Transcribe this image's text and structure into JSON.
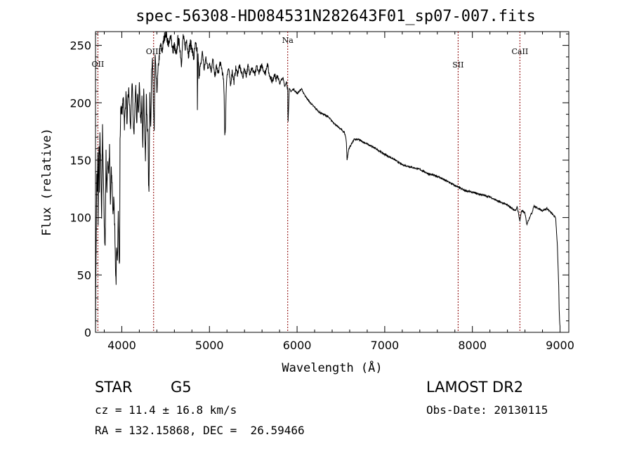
{
  "chart_data": {
    "type": "line",
    "title": "spec-56308-HD084531N282643F01_sp07-007.fits",
    "xlabel": "Wavelength (Å)",
    "ylabel": "Flux (relative)",
    "xlim": [
      3700,
      9100
    ],
    "ylim": [
      0,
      262
    ],
    "xticks": [
      4000,
      5000,
      6000,
      7000,
      8000,
      9000
    ],
    "yticks": [
      0,
      50,
      100,
      150,
      200,
      250
    ],
    "lines": [
      {
        "label": "OII",
        "x": 3727
      },
      {
        "label": "OIII",
        "x": 4363
      },
      {
        "label": "Na",
        "x": 5893
      },
      {
        "label": "SII",
        "x": 7837
      },
      {
        "label": "CaII",
        "x": 8542
      }
    ],
    "series": [
      {
        "x": [
          3700,
          3705,
          3710,
          3715,
          3720,
          3725,
          3730,
          3735,
          3740,
          3745,
          3750,
          3760,
          3770,
          3780,
          3790,
          3800,
          3810,
          3820,
          3830,
          3840,
          3850,
          3860,
          3870,
          3880,
          3890,
          3900,
          3910,
          3920,
          3930,
          3935,
          3940,
          3950,
          3960,
          3970,
          3975,
          3980,
          3990,
          4000,
          4010,
          4020,
          4030,
          4040,
          4050,
          4060,
          4070,
          4080,
          4090,
          4100,
          4110,
          4120,
          4130,
          4140,
          4150,
          4160,
          4170,
          4180,
          4190,
          4200,
          4210,
          4220,
          4230,
          4240,
          4250,
          4260,
          4270,
          4280,
          4290,
          4300,
          4305,
          4310,
          4320,
          4330,
          4340,
          4350,
          4360,
          4370,
          4380,
          4390,
          4400,
          4420,
          4440,
          4460,
          4480,
          4500,
          4520,
          4540,
          4560,
          4580,
          4600,
          4620,
          4640,
          4660,
          4680,
          4700,
          4720,
          4740,
          4760,
          4780,
          4800,
          4820,
          4840,
          4860,
          4861,
          4870,
          4880,
          4900,
          4920,
          4940,
          4960,
          4980,
          5000,
          5020,
          5040,
          5060,
          5080,
          5100,
          5120,
          5140,
          5160,
          5168,
          5175,
          5184,
          5190,
          5200,
          5220,
          5240,
          5260,
          5270,
          5280,
          5300,
          5320,
          5340,
          5360,
          5380,
          5400,
          5420,
          5440,
          5460,
          5480,
          5500,
          5520,
          5540,
          5560,
          5580,
          5600,
          5620,
          5640,
          5660,
          5680,
          5700,
          5720,
          5740,
          5760,
          5780,
          5800,
          5820,
          5840,
          5860,
          5880,
          5890,
          5893,
          5896,
          5910,
          5930,
          5960,
          6000,
          6050,
          6100,
          6150,
          6200,
          6250,
          6300,
          6350,
          6400,
          6450,
          6500,
          6540,
          6555,
          6563,
          6570,
          6590,
          6650,
          6700,
          6800,
          6900,
          7000,
          7100,
          7200,
          7300,
          7400,
          7500,
          7600,
          7700,
          7800,
          7900,
          8000,
          8100,
          8200,
          8300,
          8400,
          8450,
          8498,
          8510,
          8542,
          8560,
          8600,
          8620,
          8662,
          8680,
          8700,
          8750,
          8800,
          8850,
          8900,
          8950,
          8970,
          8985,
          8990,
          8995,
          9000
        ],
        "y": [
          5,
          60,
          100,
          140,
          120,
          155,
          90,
          145,
          160,
          120,
          170,
          150,
          95,
          178,
          140,
          90,
          75,
          155,
          120,
          150,
          140,
          160,
          110,
          140,
          130,
          100,
          120,
          90,
          50,
          45,
          70,
          60,
          110,
          60,
          60,
          165,
          200,
          190,
          198,
          205,
          180,
          195,
          210,
          178,
          205,
          210,
          195,
          175,
          205,
          215,
          185,
          170,
          200,
          215,
          180,
          210,
          190,
          215,
          195,
          180,
          210,
          160,
          215,
          175,
          150,
          205,
          180,
          175,
          130,
          122,
          210,
          180,
          225,
          235,
          200,
          175,
          240,
          225,
          210,
          235,
          250,
          245,
          255,
          262,
          255,
          250,
          260,
          245,
          250,
          240,
          255,
          250,
          235,
          258,
          248,
          255,
          242,
          252,
          248,
          238,
          250,
          245,
          188,
          240,
          225,
          232,
          245,
          228,
          240,
          230,
          235,
          228,
          238,
          222,
          232,
          225,
          235,
          230,
          220,
          205,
          172,
          180,
          210,
          225,
          230,
          215,
          228,
          222,
          218,
          230,
          225,
          232,
          228,
          222,
          230,
          224,
          232,
          226,
          230,
          228,
          224,
          232,
          226,
          230,
          232,
          228,
          226,
          235,
          225,
          222,
          218,
          226,
          220,
          224,
          216,
          220,
          222,
          214,
          218,
          212,
          215,
          180,
          212,
          210,
          212,
          208,
          212,
          205,
          200,
          196,
          192,
          190,
          188,
          184,
          180,
          177,
          174,
          170,
          165,
          150,
          160,
          168,
          168,
          164,
          160,
          155,
          151,
          146,
          144,
          142,
          138,
          136,
          132,
          128,
          124,
          122,
          120,
          118,
          114,
          111,
          108,
          106,
          110,
          97,
          106,
          104,
          94,
          102,
          104,
          110,
          108,
          106,
          108,
          104,
          100,
          75,
          40,
          20,
          10,
          5
        ]
      }
    ]
  },
  "info": {
    "object_type": "STAR",
    "subclass": "G5",
    "cz": "cz = 11.4 ± 16.8 km/s",
    "radec": "RA = 132.15868, DEC =  26.59466",
    "survey": "LAMOST DR2",
    "obs_date": "Obs-Date: 20130115"
  }
}
